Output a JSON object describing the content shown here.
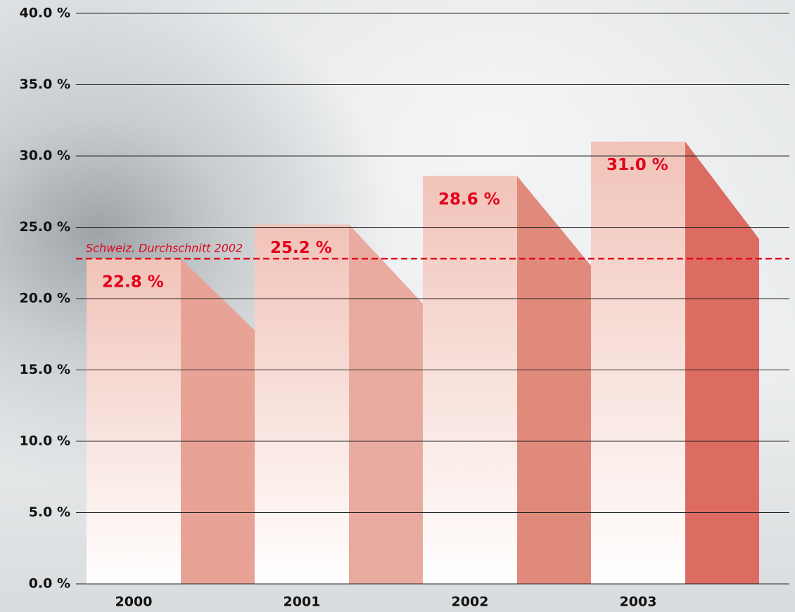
{
  "chart_data": {
    "type": "bar",
    "categories": [
      "2000",
      "2001",
      "2002",
      "2003"
    ],
    "values": [
      22.8,
      25.2,
      28.6,
      31.0
    ],
    "value_labels": [
      "22.8 %",
      "25.2 %",
      "28.6 %",
      "31.0 %"
    ],
    "colors": [
      "#e8a396",
      "#e9aba0",
      "#e08a7c",
      "#dc6b62"
    ],
    "label_color": "#e3001b",
    "ylim": [
      0,
      40
    ],
    "yticks": [
      {
        "value": 0,
        "label": "0.0 %"
      },
      {
        "value": 5,
        "label": "5.0 %"
      },
      {
        "value": 10,
        "label": "10.0 %"
      },
      {
        "value": 15,
        "label": "15.0 %"
      },
      {
        "value": 20,
        "label": "20.0 %"
      },
      {
        "value": 25,
        "label": "25.0 %"
      },
      {
        "value": 30,
        "label": "30.0 %"
      },
      {
        "value": 35,
        "label": "35.0 %"
      },
      {
        "value": 40,
        "label": "40.0 %"
      }
    ],
    "grid": true,
    "reference_line": {
      "value": 22.8,
      "label": "Schweiz. Durchschnitt 2002",
      "color": "#e3001b"
    }
  }
}
